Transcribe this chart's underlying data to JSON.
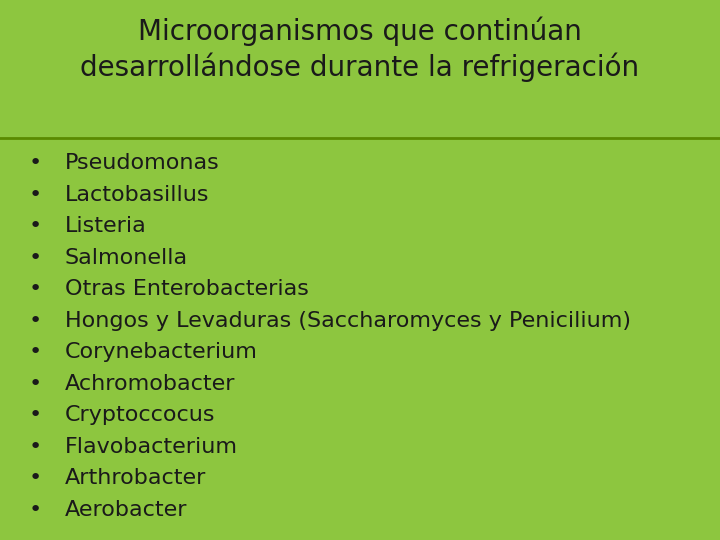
{
  "title_line1": "Microorganismos que continúan",
  "title_line2": "desarrollándose durante la refrigeración",
  "items": [
    "Pseudomonas",
    "Lactobasillus",
    "Listeria",
    "Salmonella",
    "Otras Enterobacterias",
    "Hongos y Levaduras (Saccharomyces y Penicilium)",
    "Corynebacterium",
    "Achromobacter",
    "Cryptoccocus",
    "Flavobacterium",
    "Arthrobacter",
    "Aerobacter"
  ],
  "bg_color": "#8dc63f",
  "text_color": "#1a1a1a",
  "title_color": "#1a1a1a",
  "separator_color": "#5a8a00",
  "title_fontsize": 20,
  "item_fontsize": 16,
  "fig_width": 7.2,
  "fig_height": 5.4,
  "dpi": 100
}
